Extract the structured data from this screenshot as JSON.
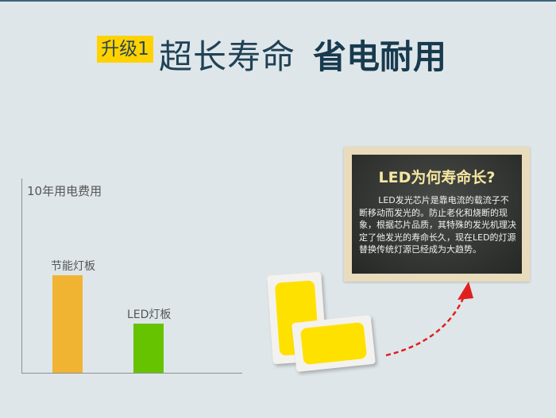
{
  "title": {
    "tag": "升级1",
    "part1": "超长寿命",
    "part2": "省电耐用"
  },
  "chart": {
    "title": "10年用电费用",
    "bars": [
      {
        "label": "节能灯板",
        "color": "#f0b432"
      },
      {
        "label": "LED灯板",
        "color": "#66c300"
      }
    ]
  },
  "board": {
    "title": "LED为何寿命长?",
    "text": "LED发光芯片是靠电流的载流子不断移动而发光的。防止老化和烧断的现象，根据芯片品质，其特殊的发光机理决定了他发光的寿命长久，现在LED的灯源替换传统灯源已经成为大趋势。"
  },
  "colors": {
    "accent": "#ffd200",
    "heading": "#173a4e",
    "arrow": "#e02020"
  }
}
